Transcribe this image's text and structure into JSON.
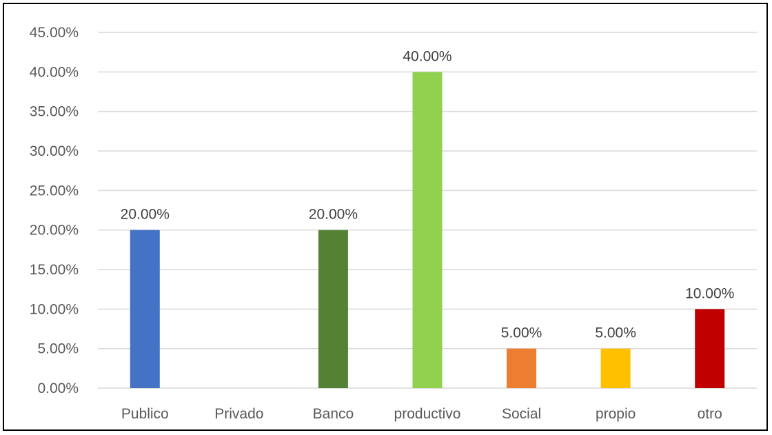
{
  "chart_data": {
    "type": "bar",
    "title": "",
    "xlabel": "",
    "ylabel": "",
    "categories": [
      "Publico",
      "Privado",
      "Banco",
      "productivo",
      "Social",
      "propio",
      "otro"
    ],
    "values": [
      20,
      0,
      20,
      40,
      5,
      5,
      10
    ],
    "data_labels": [
      "20.00%",
      "",
      "20.00%",
      "40.00%",
      "5.00%",
      "5.00%",
      "10.00%"
    ],
    "colors": [
      "#4472C4",
      "#A5A5A5",
      "#548235",
      "#92D050",
      "#ED7D31",
      "#FFC000",
      "#C00000"
    ],
    "ylim": [
      0,
      45
    ],
    "yticks": [
      0,
      5,
      10,
      15,
      20,
      25,
      30,
      35,
      40,
      45
    ],
    "ytick_labels": [
      "0.00%",
      "5.00%",
      "10.00%",
      "15.00%",
      "20.00%",
      "25.00%",
      "30.00%",
      "35.00%",
      "40.00%",
      "45.00%"
    ],
    "grid": true,
    "legend": "none"
  }
}
